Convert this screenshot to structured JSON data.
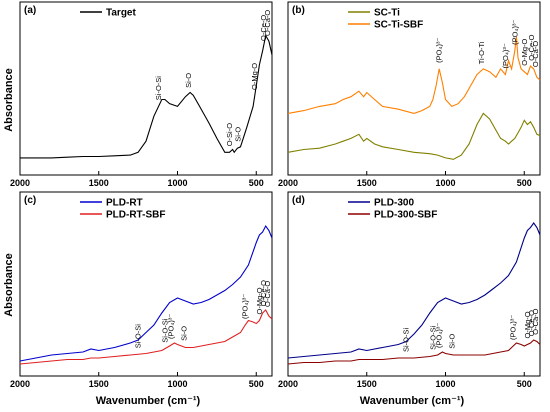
{
  "figure": {
    "ylabel": "Absorbance",
    "xlabel": "Wavenumber (cm⁻¹)",
    "x_ticks": [
      "2000",
      "1500",
      "1000",
      "500"
    ]
  },
  "chart_data": [
    {
      "type": "line",
      "panel": "(a)",
      "xlim": [
        2000,
        400
      ],
      "legend_position": "top-left",
      "series": [
        {
          "name": "Target",
          "color": "#000000",
          "x": [
            2000,
            1900,
            1800,
            1700,
            1600,
            1500,
            1400,
            1300,
            1250,
            1200,
            1150,
            1100,
            1080,
            1050,
            1000,
            950,
            920,
            900,
            860,
            800,
            750,
            700,
            670,
            650,
            640,
            620,
            600,
            560,
            520,
            500,
            480,
            460,
            440,
            420,
            400
          ],
          "y": [
            0.08,
            0.08,
            0.08,
            0.085,
            0.09,
            0.09,
            0.095,
            0.1,
            0.12,
            0.2,
            0.38,
            0.5,
            0.5,
            0.47,
            0.45,
            0.52,
            0.55,
            0.53,
            0.45,
            0.33,
            0.22,
            0.12,
            0.12,
            0.14,
            0.12,
            0.15,
            0.16,
            0.3,
            0.45,
            0.6,
            0.75,
            0.85,
            0.96,
            0.92,
            0.82
          ]
        }
      ],
      "annotations": [
        {
          "text": "Si-O-Si",
          "x": 1120
        },
        {
          "text": "Si-O",
          "x": 930
        },
        {
          "text": "O-Si-O",
          "x": 670
        },
        {
          "text": "Si-O",
          "x": 615
        },
        {
          "text": "O-Mg-O",
          "x": 510
        },
        {
          "text": "O-Ce-O",
          "x": 455
        },
        {
          "text": "O-Ca-O",
          "x": 430
        }
      ]
    },
    {
      "type": "line",
      "panel": "(b)",
      "xlim": [
        2000,
        400
      ],
      "legend_position": "top-left",
      "series": [
        {
          "name": "SC-Ti",
          "color": "#808000",
          "x": [
            2000,
            1900,
            1800,
            1700,
            1650,
            1600,
            1550,
            1520,
            1500,
            1450,
            1400,
            1300,
            1200,
            1100,
            1050,
            1000,
            950,
            900,
            850,
            800,
            760,
            720,
            680,
            650,
            620,
            600,
            580,
            560,
            540,
            520,
            500,
            480,
            460,
            440,
            420,
            400
          ],
          "y": [
            0.12,
            0.14,
            0.15,
            0.18,
            0.2,
            0.22,
            0.25,
            0.2,
            0.22,
            0.18,
            0.16,
            0.14,
            0.12,
            0.11,
            0.1,
            0.08,
            0.07,
            0.1,
            0.18,
            0.32,
            0.4,
            0.36,
            0.28,
            0.22,
            0.2,
            0.18,
            0.2,
            0.22,
            0.26,
            0.3,
            0.35,
            0.32,
            0.34,
            0.3,
            0.25,
            0.24
          ]
        },
        {
          "name": "SC-Ti-SBF",
          "color": "#FF7F00",
          "x": [
            2000,
            1900,
            1800,
            1700,
            1650,
            1600,
            1550,
            1520,
            1500,
            1450,
            1400,
            1300,
            1200,
            1150,
            1100,
            1080,
            1060,
            1040,
            1020,
            1000,
            960,
            920,
            880,
            840,
            800,
            760,
            720,
            680,
            650,
            620,
            600,
            580,
            560,
            550,
            540,
            520,
            500,
            480,
            460,
            440,
            420,
            400
          ],
          "y": [
            0.4,
            0.42,
            0.45,
            0.47,
            0.5,
            0.52,
            0.56,
            0.52,
            0.55,
            0.5,
            0.45,
            0.43,
            0.4,
            0.42,
            0.45,
            0.5,
            0.6,
            0.72,
            0.62,
            0.5,
            0.45,
            0.47,
            0.52,
            0.6,
            0.68,
            0.72,
            0.7,
            0.66,
            0.72,
            0.68,
            0.78,
            0.72,
            0.85,
            0.95,
            0.8,
            0.72,
            0.7,
            0.68,
            0.74,
            0.72,
            0.66,
            0.64
          ]
        }
      ],
      "annotations": [
        {
          "text": "(PO₄)³⁻",
          "x": 1040
        },
        {
          "text": "Ti-O-Ti",
          "x": 770
        },
        {
          "text": "(PO₄)³⁻",
          "x": 620
        },
        {
          "text": "(PO₄)³⁻",
          "x": 560
        },
        {
          "text": "O-Mg-O",
          "x": 500
        },
        {
          "text": "O-Ce-O",
          "x": 455
        },
        {
          "text": "O-Ca-O",
          "x": 430
        }
      ]
    },
    {
      "type": "line",
      "panel": "(c)",
      "xlim": [
        2000,
        400
      ],
      "legend_position": "top-left",
      "series": [
        {
          "name": "PLD-RT",
          "color": "#0000CD",
          "x": [
            2000,
            1900,
            1800,
            1700,
            1600,
            1550,
            1500,
            1400,
            1300,
            1250,
            1200,
            1150,
            1100,
            1050,
            1000,
            950,
            900,
            850,
            800,
            750,
            700,
            650,
            600,
            550,
            500,
            480,
            460,
            440,
            420,
            400
          ],
          "y": [
            0.06,
            0.08,
            0.1,
            0.11,
            0.12,
            0.14,
            0.13,
            0.15,
            0.18,
            0.2,
            0.25,
            0.3,
            0.38,
            0.45,
            0.48,
            0.46,
            0.44,
            0.45,
            0.47,
            0.5,
            0.53,
            0.57,
            0.62,
            0.7,
            0.85,
            0.9,
            0.92,
            0.96,
            0.93,
            0.88
          ]
        },
        {
          "name": "PLD-RT-SBF",
          "color": "#E02020",
          "x": [
            2000,
            1900,
            1800,
            1700,
            1600,
            1550,
            1500,
            1400,
            1300,
            1200,
            1100,
            1050,
            1020,
            1000,
            950,
            900,
            850,
            800,
            750,
            700,
            650,
            600,
            570,
            550,
            520,
            500,
            480,
            460,
            440,
            420,
            400
          ],
          "y": [
            0.04,
            0.05,
            0.06,
            0.07,
            0.07,
            0.08,
            0.08,
            0.09,
            0.1,
            0.11,
            0.13,
            0.16,
            0.18,
            0.17,
            0.15,
            0.15,
            0.16,
            0.17,
            0.18,
            0.19,
            0.22,
            0.25,
            0.3,
            0.33,
            0.32,
            0.31,
            0.33,
            0.38,
            0.4,
            0.36,
            0.34
          ]
        }
      ],
      "annotations": [
        {
          "text": "Si-O-Si",
          "x": 1250
        },
        {
          "text": "(PO₄)³⁻",
          "x": 1040
        },
        {
          "text": "Si-O-Si",
          "x": 1080
        },
        {
          "text": "Si-O",
          "x": 960
        },
        {
          "text": "(PO₄)³⁻",
          "x": 570
        },
        {
          "text": "O-Mg-O",
          "x": 480
        },
        {
          "text": "O-Ce-O",
          "x": 455
        },
        {
          "text": "O-Ca-O",
          "x": 430
        }
      ]
    },
    {
      "type": "line",
      "panel": "(d)",
      "xlim": [
        2000,
        400
      ],
      "legend_position": "top-left",
      "series": [
        {
          "name": "PLD-300",
          "color": "#00008B",
          "x": [
            2000,
            1900,
            1800,
            1700,
            1600,
            1550,
            1500,
            1400,
            1300,
            1250,
            1200,
            1150,
            1100,
            1050,
            1000,
            950,
            900,
            850,
            800,
            750,
            700,
            650,
            600,
            550,
            500,
            480,
            460,
            440,
            420,
            400
          ],
          "y": [
            0.08,
            0.09,
            0.1,
            0.11,
            0.12,
            0.14,
            0.13,
            0.15,
            0.17,
            0.19,
            0.24,
            0.3,
            0.38,
            0.45,
            0.48,
            0.46,
            0.44,
            0.45,
            0.47,
            0.5,
            0.54,
            0.58,
            0.63,
            0.72,
            0.88,
            0.93,
            0.95,
            0.98,
            0.95,
            0.9
          ]
        },
        {
          "name": "PLD-300-SBF",
          "color": "#8B0000",
          "x": [
            2000,
            1900,
            1800,
            1700,
            1600,
            1550,
            1500,
            1400,
            1300,
            1200,
            1100,
            1050,
            1020,
            1000,
            950,
            900,
            850,
            800,
            750,
            700,
            650,
            600,
            570,
            550,
            520,
            500,
            480,
            460,
            440,
            420,
            400
          ],
          "y": [
            0.04,
            0.05,
            0.05,
            0.06,
            0.06,
            0.07,
            0.07,
            0.07,
            0.08,
            0.08,
            0.09,
            0.1,
            0.12,
            0.11,
            0.1,
            0.1,
            0.1,
            0.1,
            0.1,
            0.11,
            0.12,
            0.13,
            0.16,
            0.18,
            0.17,
            0.16,
            0.17,
            0.18,
            0.2,
            0.19,
            0.17
          ]
        }
      ],
      "annotations": [
        {
          "text": "Si-O-Si",
          "x": 1250
        },
        {
          "text": "(PO₄)³⁻",
          "x": 1040
        },
        {
          "text": "Si-O-Si",
          "x": 1080
        },
        {
          "text": "Si-O",
          "x": 960
        },
        {
          "text": "(PO₄)³⁻",
          "x": 570
        },
        {
          "text": "O-Mg-O",
          "x": 480
        },
        {
          "text": "O-Ce-O",
          "x": 455
        },
        {
          "text": "O-Ca-O",
          "x": 430
        }
      ]
    }
  ]
}
